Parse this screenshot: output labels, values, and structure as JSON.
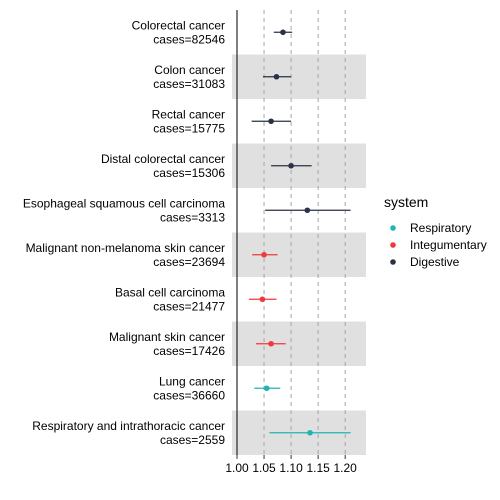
{
  "chart_data": {
    "type": "forest",
    "xlim": [
      1.0,
      1.22
    ],
    "x_ticks": [
      "1.00",
      "1.05",
      "1.10",
      "1.15",
      "1.20"
    ],
    "x_tick_values": [
      1.0,
      1.05,
      1.1,
      1.15,
      1.2
    ],
    "reference_line": 1.0,
    "grid": "vertical dashed at x ticks 1.05–1.20",
    "legend": {
      "title": "system",
      "placement": "right",
      "entries": [
        {
          "name": "Respiratory",
          "color": "#1fb5b5"
        },
        {
          "name": "Integumentary",
          "color": "#f0383e"
        },
        {
          "name": "Digestive",
          "color": "#2a3245"
        }
      ]
    },
    "rows": [
      {
        "label": "Colorectal cancer",
        "cases": "cases=82546",
        "estimate": 1.085,
        "lower": 1.068,
        "upper": 1.102,
        "system": "Digestive",
        "shaded": false
      },
      {
        "label": "Colon cancer",
        "cases": "cases=31083",
        "estimate": 1.073,
        "lower": 1.048,
        "upper": 1.1,
        "system": "Digestive",
        "shaded": true
      },
      {
        "label": "Rectal cancer",
        "cases": "cases=15775",
        "estimate": 1.063,
        "lower": 1.027,
        "upper": 1.1,
        "system": "Digestive",
        "shaded": false
      },
      {
        "label": "Distal colorectal cancer",
        "cases": "cases=15306",
        "estimate": 1.1,
        "lower": 1.063,
        "upper": 1.138,
        "system": "Digestive",
        "shaded": true
      },
      {
        "label": "Esophageal squamous cell carcinoma",
        "cases": "cases=3313",
        "estimate": 1.13,
        "lower": 1.052,
        "upper": 1.21,
        "system": "Digestive",
        "shaded": false
      },
      {
        "label": "Malignant non-melanoma skin cancer",
        "cases": "cases=23694",
        "estimate": 1.05,
        "lower": 1.028,
        "upper": 1.075,
        "system": "Integumentary",
        "shaded": true
      },
      {
        "label": "Basal cell carcinoma",
        "cases": "cases=21477",
        "estimate": 1.047,
        "lower": 1.022,
        "upper": 1.073,
        "system": "Integumentary",
        "shaded": false
      },
      {
        "label": "Malignant skin cancer",
        "cases": "cases=17426",
        "estimate": 1.063,
        "lower": 1.035,
        "upper": 1.09,
        "system": "Integumentary",
        "shaded": true
      },
      {
        "label": "Lung cancer",
        "cases": "cases=36660",
        "estimate": 1.055,
        "lower": 1.032,
        "upper": 1.08,
        "system": "Respiratory",
        "shaded": false
      },
      {
        "label": "Respiratory and intrathoracic cancer",
        "cases": "cases=2559",
        "estimate": 1.135,
        "lower": 1.06,
        "upper": 1.21,
        "system": "Respiratory",
        "shaded": true
      }
    ]
  }
}
